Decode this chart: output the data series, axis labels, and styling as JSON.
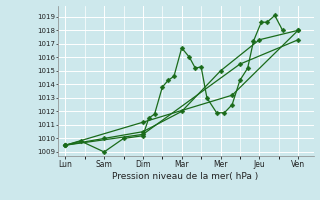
{
  "background_color": "#cde8ec",
  "grid_color": "#ffffff",
  "line_color": "#1a6b1a",
  "marker_color": "#1a6b1a",
  "xlabel": "Pression niveau de la mer( hPa )",
  "ylim": [
    1009,
    1019.5
  ],
  "yticks": [
    1009,
    1010,
    1011,
    1012,
    1013,
    1014,
    1015,
    1016,
    1017,
    1018,
    1019
  ],
  "x_labels": [
    "Lun",
    "Sam",
    "Dim",
    "Mar",
    "Mer",
    "Jeu",
    "Ven"
  ],
  "x_positions": [
    0,
    1,
    2,
    3,
    4,
    5,
    6
  ],
  "series1_x": [
    0,
    0.4,
    1.0,
    1.5,
    2.0,
    2.15,
    2.3,
    2.5,
    2.65,
    2.8,
    3.0,
    3.2,
    3.35,
    3.5,
    3.65,
    3.9,
    4.1,
    4.3,
    4.5,
    4.7,
    4.85,
    5.05,
    5.2,
    5.4,
    5.6
  ],
  "series1_y": [
    1009.5,
    1009.8,
    1009.0,
    1010.0,
    1010.2,
    1011.5,
    1011.8,
    1013.8,
    1014.3,
    1014.6,
    1016.7,
    1016.0,
    1015.2,
    1015.3,
    1013.0,
    1011.9,
    1011.9,
    1012.5,
    1014.3,
    1015.2,
    1017.2,
    1018.6,
    1018.6,
    1019.1,
    1018.0
  ],
  "series2_x": [
    0,
    1.0,
    2.0,
    3.0,
    4.0,
    5.0,
    6.0
  ],
  "series2_y": [
    1009.5,
    1010.0,
    1010.5,
    1012.0,
    1015.0,
    1017.3,
    1018.0
  ],
  "series3_x": [
    0,
    2.0,
    4.5,
    6.0
  ],
  "series3_y": [
    1009.5,
    1010.3,
    1015.5,
    1017.3
  ],
  "series4_x": [
    0,
    2.0,
    4.3,
    6.0
  ],
  "series4_y": [
    1009.5,
    1011.2,
    1013.2,
    1018.0
  ]
}
